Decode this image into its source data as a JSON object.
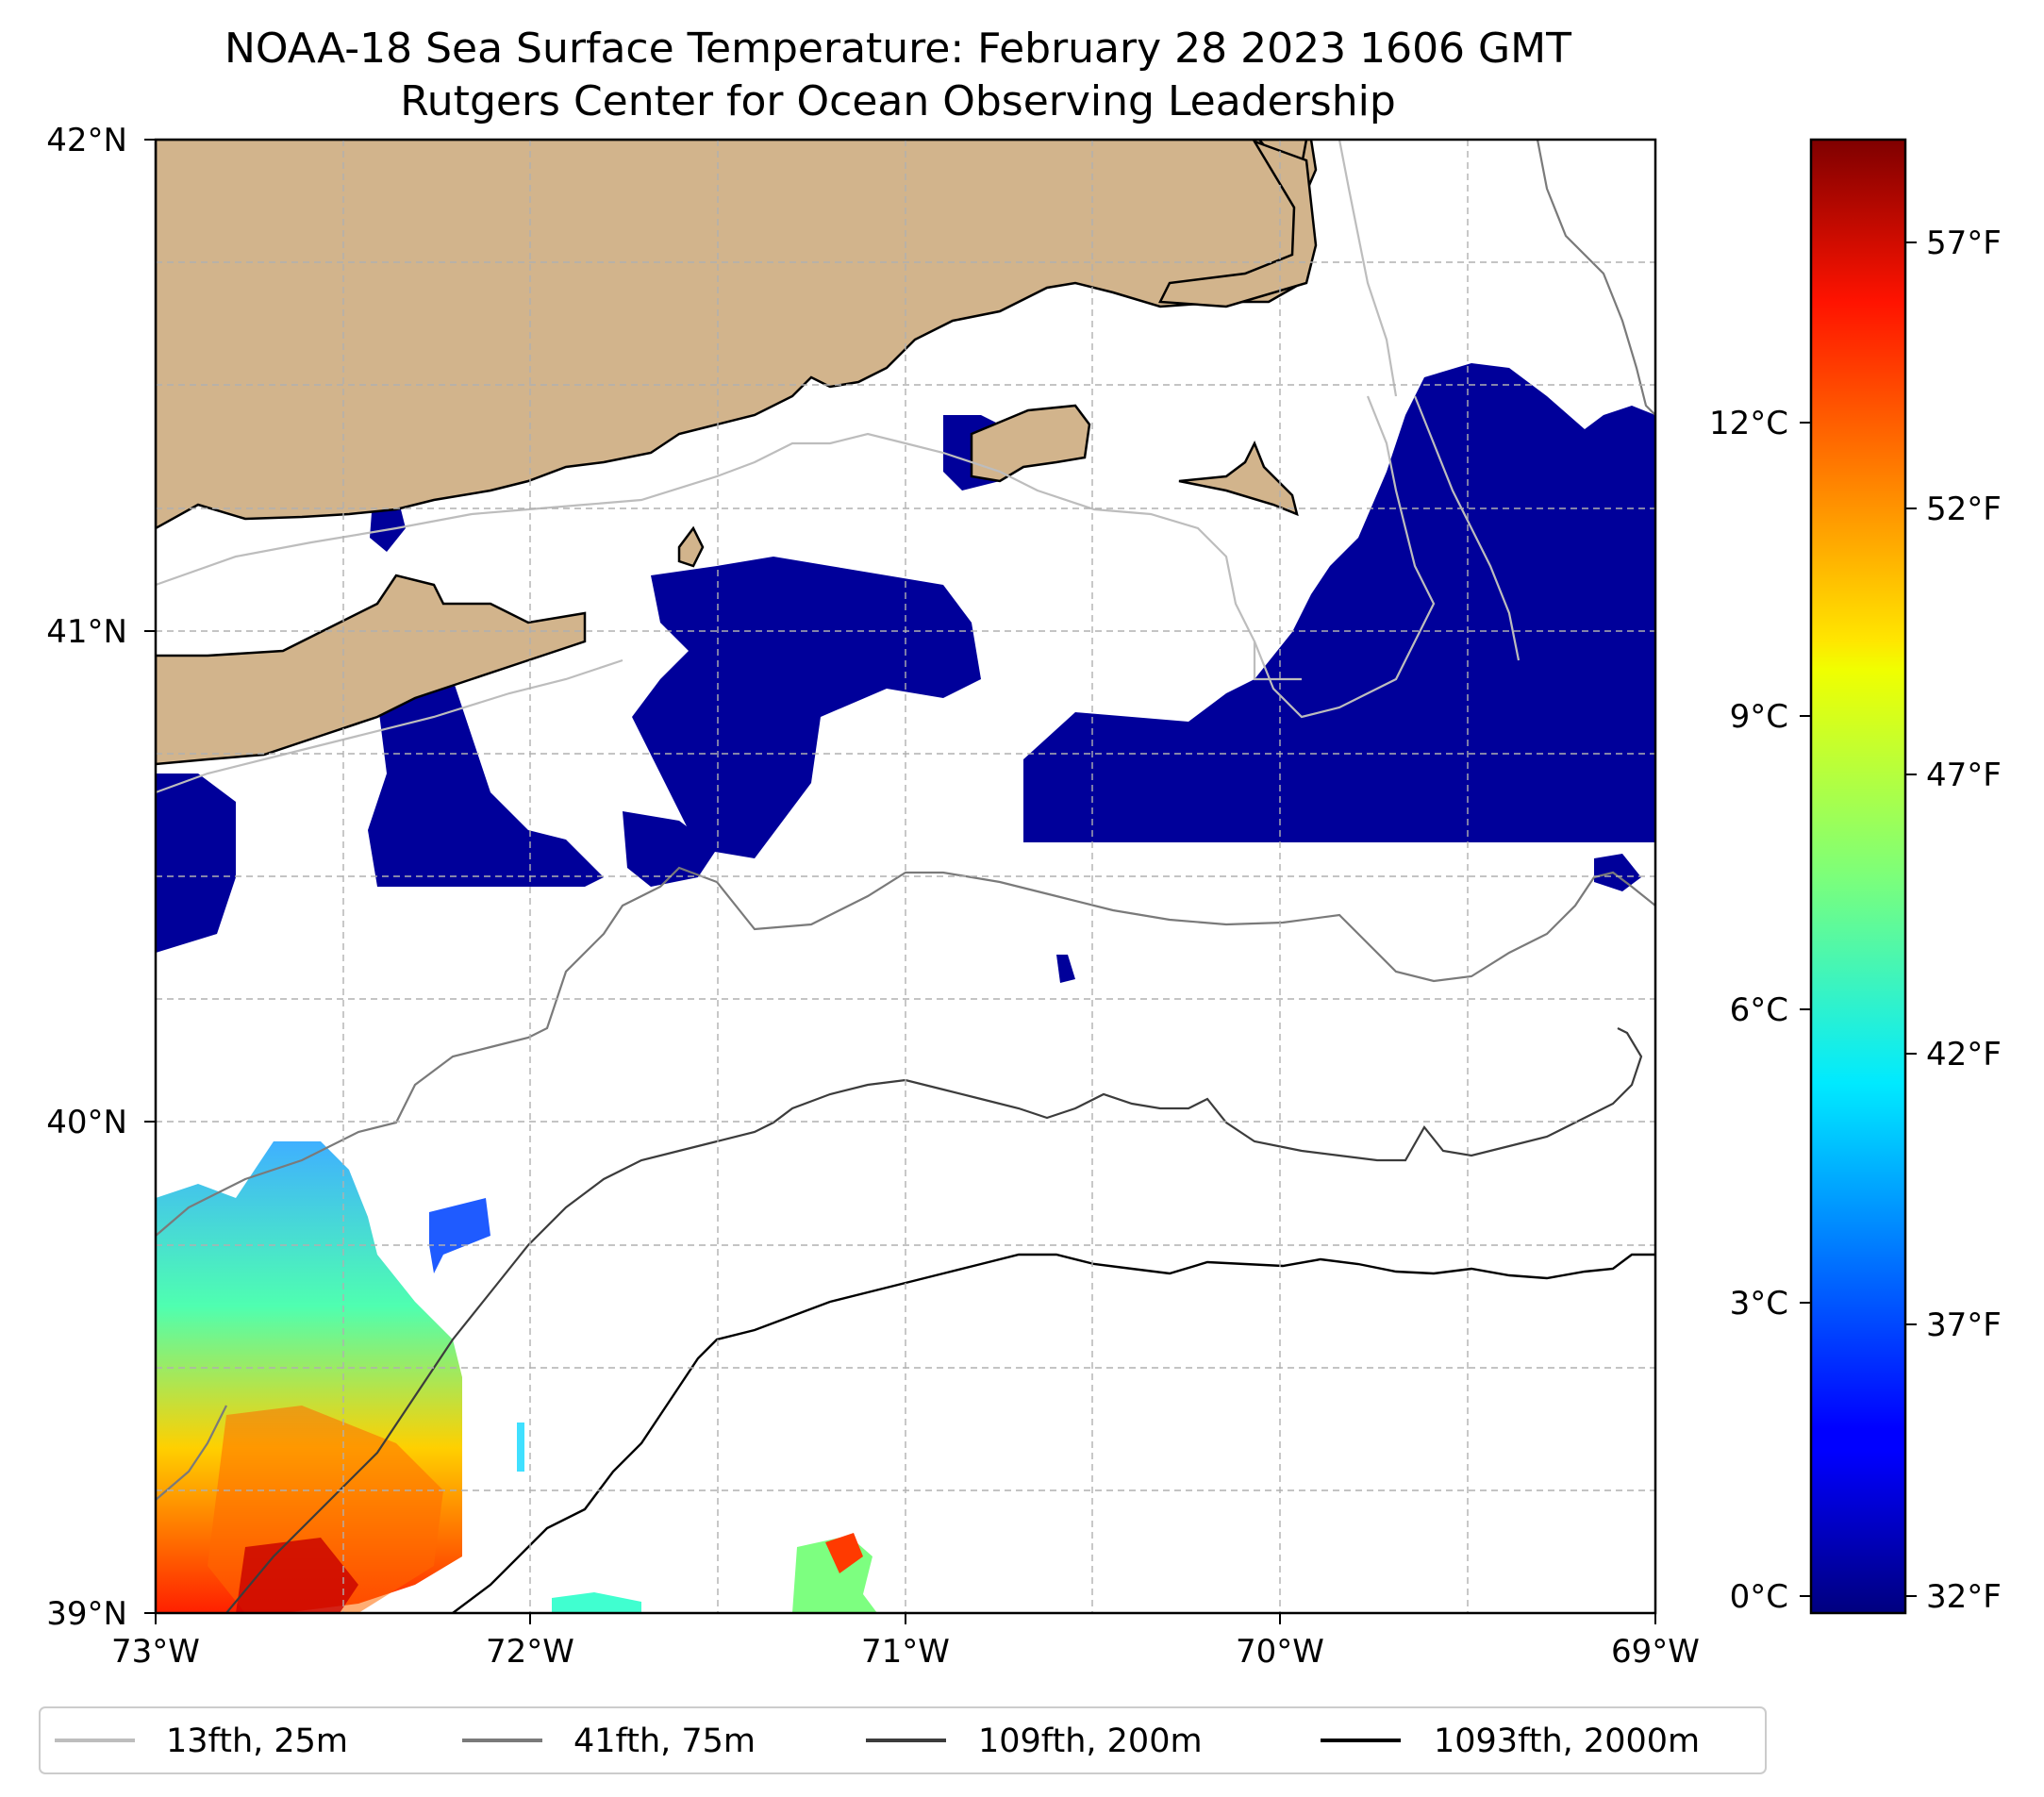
{
  "title": {
    "line1": "NOAA-18 Sea Surface Temperature: February 28 2023 1606 GMT",
    "line2": "Rutgers Center for Ocean Observing Leadership"
  },
  "map": {
    "lon_range": [
      -73,
      -69
    ],
    "lat_range": [
      39,
      42
    ],
    "gridlines": true,
    "x_ticks": [
      "73°W",
      "72°W",
      "71°W",
      "70°W",
      "69°W"
    ],
    "y_ticks": [
      "39°N",
      "40°N",
      "41°N",
      "42°N"
    ],
    "land_color": "#d2b48c",
    "cold_color": "#00009a"
  },
  "colorbar": {
    "colormap": "jet",
    "celsius_ticks": [
      "0°C",
      "3°C",
      "6°C",
      "9°C",
      "12°C"
    ],
    "fahrenheit_ticks": [
      "32°F",
      "37°F",
      "42°F",
      "47°F",
      "52°F",
      "57°F"
    ]
  },
  "legend": {
    "placement": "bottom",
    "items": [
      {
        "label": "13fth, 25m",
        "color": "#bdbdbd"
      },
      {
        "label": "41fth, 75m",
        "color": "#7a7a7a"
      },
      {
        "label": "109fth, 200m",
        "color": "#3c3c3c"
      },
      {
        "label": "1093fth, 2000m",
        "color": "#000000"
      }
    ]
  }
}
